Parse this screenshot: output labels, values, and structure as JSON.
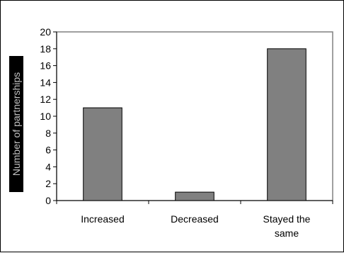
{
  "chart_data": {
    "type": "bar",
    "title": "",
    "xlabel": "",
    "ylabel": "Number of partnerships",
    "categories": [
      [
        "Increased"
      ],
      [
        "Decreased"
      ],
      [
        "Stayed the",
        "same"
      ]
    ],
    "values": [
      11,
      1,
      18
    ],
    "ylim": [
      0,
      20
    ],
    "ytick_step": 2,
    "grid": false,
    "legend": "none",
    "colors": {
      "bar": "#808080",
      "bar_stroke": "#000000",
      "plot_border": "#808080",
      "axis": "#000000"
    }
  }
}
